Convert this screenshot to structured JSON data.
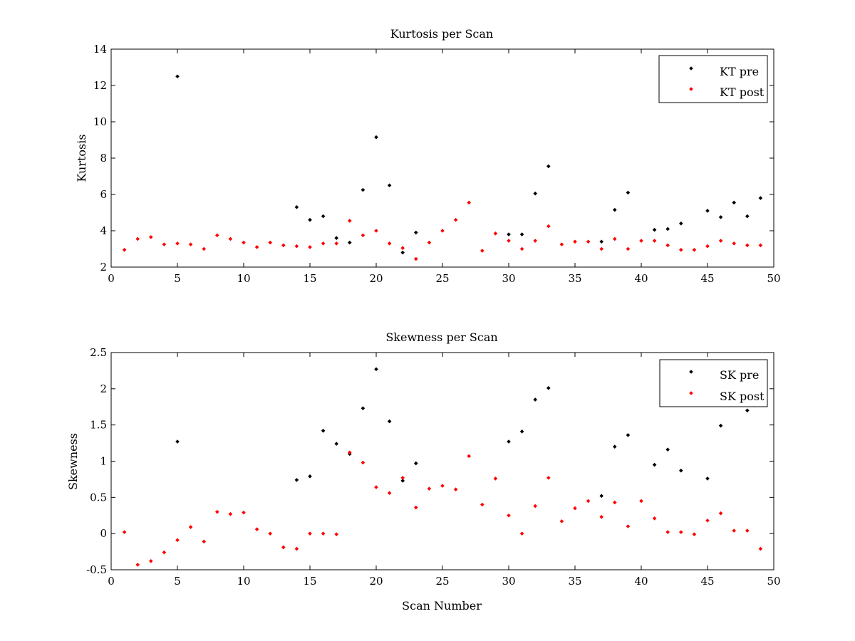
{
  "colors": {
    "pre": "#000000",
    "post": "#ff0000",
    "axes": "#000000",
    "background": "#ffffff"
  },
  "chart_data": [
    {
      "type": "scatter",
      "title": "Kurtosis per Scan",
      "xlabel": "",
      "ylabel": "Kurtosis",
      "xlim": [
        0,
        50
      ],
      "ylim": [
        2,
        14
      ],
      "xticks": [
        0,
        5,
        10,
        15,
        20,
        25,
        30,
        35,
        40,
        45,
        50
      ],
      "yticks": [
        2,
        4,
        6,
        8,
        10,
        12,
        14
      ],
      "grid": false,
      "legend_position": "top-right",
      "series": [
        {
          "name": "KT pre",
          "color": "#000000",
          "points": [
            [
              5,
              12.5
            ],
            [
              14,
              5.3
            ],
            [
              15,
              4.6
            ],
            [
              16,
              4.8
            ],
            [
              17,
              3.6
            ],
            [
              18,
              3.35
            ],
            [
              19,
              6.25
            ],
            [
              20,
              9.15
            ],
            [
              21,
              6.5
            ],
            [
              22,
              2.8
            ],
            [
              23,
              3.9
            ],
            [
              30,
              3.8
            ],
            [
              31,
              3.8
            ],
            [
              32,
              6.05
            ],
            [
              33,
              7.55
            ],
            [
              37,
              3.4
            ],
            [
              38,
              5.15
            ],
            [
              39,
              6.1
            ],
            [
              41,
              4.05
            ],
            [
              42,
              4.1
            ],
            [
              43,
              4.4
            ],
            [
              45,
              5.1
            ],
            [
              46,
              4.75
            ],
            [
              47,
              5.55
            ],
            [
              48,
              4.8
            ],
            [
              49,
              5.8
            ]
          ]
        },
        {
          "name": "KT post",
          "color": "#ff0000",
          "points": [
            [
              1,
              2.95
            ],
            [
              2,
              3.55
            ],
            [
              3,
              3.65
            ],
            [
              4,
              3.25
            ],
            [
              5,
              3.3
            ],
            [
              6,
              3.25
            ],
            [
              7,
              3.0
            ],
            [
              8,
              3.75
            ],
            [
              9,
              3.55
            ],
            [
              10,
              3.35
            ],
            [
              11,
              3.1
            ],
            [
              12,
              3.35
            ],
            [
              13,
              3.2
            ],
            [
              14,
              3.15
            ],
            [
              15,
              3.1
            ],
            [
              16,
              3.3
            ],
            [
              17,
              3.3
            ],
            [
              18,
              4.55
            ],
            [
              19,
              3.75
            ],
            [
              20,
              4.0
            ],
            [
              21,
              3.3
            ],
            [
              22,
              3.05
            ],
            [
              23,
              2.45
            ],
            [
              24,
              3.35
            ],
            [
              25,
              4.0
            ],
            [
              26,
              4.6
            ],
            [
              27,
              5.55
            ],
            [
              28,
              2.9
            ],
            [
              29,
              3.85
            ],
            [
              30,
              3.45
            ],
            [
              31,
              3.0
            ],
            [
              32,
              3.45
            ],
            [
              33,
              4.25
            ],
            [
              34,
              3.25
            ],
            [
              35,
              3.4
            ],
            [
              36,
              3.4
            ],
            [
              37,
              3.0
            ],
            [
              38,
              3.55
            ],
            [
              39,
              3.0
            ],
            [
              40,
              3.45
            ],
            [
              41,
              3.45
            ],
            [
              42,
              3.2
            ],
            [
              43,
              2.95
            ],
            [
              44,
              2.95
            ],
            [
              45,
              3.15
            ],
            [
              46,
              3.45
            ],
            [
              47,
              3.3
            ],
            [
              48,
              3.2
            ],
            [
              49,
              3.2
            ]
          ]
        }
      ]
    },
    {
      "type": "scatter",
      "title": "Skewness per Scan",
      "xlabel": "Scan Number",
      "ylabel": "Skewness",
      "xlim": [
        0,
        50
      ],
      "ylim": [
        -0.5,
        2.5
      ],
      "xticks": [
        0,
        5,
        10,
        15,
        20,
        25,
        30,
        35,
        40,
        45,
        50
      ],
      "yticks": [
        -0.5,
        0,
        0.5,
        1,
        1.5,
        2,
        2.5
      ],
      "grid": false,
      "legend_position": "top-right",
      "series": [
        {
          "name": "SK pre",
          "color": "#000000",
          "points": [
            [
              5,
              1.27
            ],
            [
              14,
              0.74
            ],
            [
              15,
              0.79
            ],
            [
              16,
              1.42
            ],
            [
              17,
              1.24
            ],
            [
              18,
              1.1
            ],
            [
              19,
              1.73
            ],
            [
              20,
              2.27
            ],
            [
              21,
              1.55
            ],
            [
              22,
              0.73
            ],
            [
              23,
              0.97
            ],
            [
              30,
              1.27
            ],
            [
              31,
              1.41
            ],
            [
              32,
              1.85
            ],
            [
              33,
              2.01
            ],
            [
              37,
              0.52
            ],
            [
              38,
              1.2
            ],
            [
              39,
              1.36
            ],
            [
              41,
              0.95
            ],
            [
              42,
              1.16
            ],
            [
              43,
              0.87
            ],
            [
              45,
              0.76
            ],
            [
              46,
              1.49
            ],
            [
              48,
              1.7
            ]
          ]
        },
        {
          "name": "SK post",
          "color": "#ff0000",
          "points": [
            [
              1,
              0.02
            ],
            [
              2,
              -0.43
            ],
            [
              3,
              -0.38
            ],
            [
              4,
              -0.26
            ],
            [
              5,
              -0.09
            ],
            [
              6,
              0.09
            ],
            [
              7,
              -0.11
            ],
            [
              8,
              0.3
            ],
            [
              9,
              0.27
            ],
            [
              10,
              0.29
            ],
            [
              11,
              0.06
            ],
            [
              12,
              0.0
            ],
            [
              13,
              -0.19
            ],
            [
              14,
              -0.21
            ],
            [
              15,
              0.0
            ],
            [
              16,
              0.0
            ],
            [
              17,
              -0.01
            ],
            [
              18,
              1.12
            ],
            [
              19,
              0.98
            ],
            [
              20,
              0.64
            ],
            [
              21,
              0.56
            ],
            [
              22,
              0.77
            ],
            [
              23,
              0.36
            ],
            [
              24,
              0.62
            ],
            [
              25,
              0.66
            ],
            [
              26,
              0.61
            ],
            [
              27,
              1.07
            ],
            [
              28,
              0.4
            ],
            [
              29,
              0.76
            ],
            [
              30,
              0.25
            ],
            [
              31,
              0.0
            ],
            [
              32,
              0.38
            ],
            [
              33,
              0.77
            ],
            [
              34,
              0.17
            ],
            [
              35,
              0.35
            ],
            [
              36,
              0.45
            ],
            [
              37,
              0.23
            ],
            [
              38,
              0.43
            ],
            [
              39,
              0.1
            ],
            [
              40,
              0.45
            ],
            [
              41,
              0.21
            ],
            [
              42,
              0.02
            ],
            [
              43,
              0.02
            ],
            [
              44,
              -0.01
            ],
            [
              45,
              0.18
            ],
            [
              46,
              0.28
            ],
            [
              47,
              0.04
            ],
            [
              48,
              0.04
            ],
            [
              49,
              -0.21
            ]
          ]
        }
      ]
    }
  ]
}
